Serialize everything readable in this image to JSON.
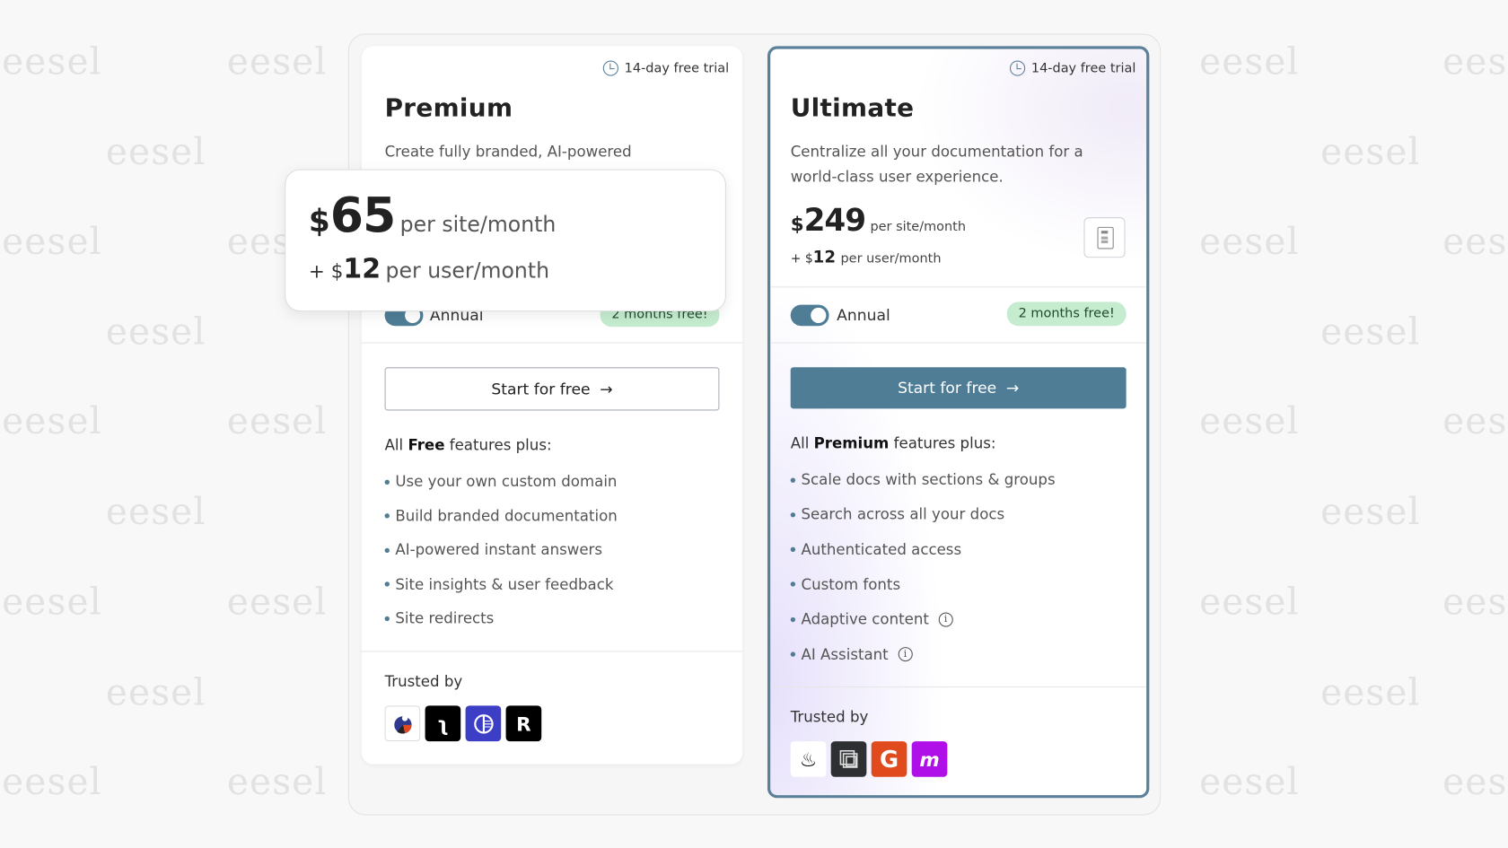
{
  "watermark": "eesel",
  "premium": {
    "trial": "14-day free trial",
    "title": "Premium",
    "description": "Create fully branded, AI-powered",
    "toggle_label": "Annual",
    "toggle_on": true,
    "badge": "2 months free!",
    "cta": "Start for free",
    "features_prefix": "All",
    "features_tier": "Free",
    "features_suffix": "features plus:",
    "features": [
      "Use your own custom domain",
      "Build branded documentation",
      "AI-powered instant answers",
      "Site insights & user feedback",
      "Site redirects"
    ],
    "trusted_by": "Trusted by"
  },
  "popup": {
    "currency": "$",
    "site_price": "65",
    "site_unit": "per site/month",
    "plus": "+ $",
    "user_price": "12",
    "user_unit": "per user/month"
  },
  "ultimate": {
    "trial": "14-day free trial",
    "title": "Ultimate",
    "description": "Centralize all your documentation for a world-class user experience.",
    "currency": "$",
    "site_price": "249",
    "site_unit": "per site/month",
    "plus": "+ $",
    "user_price": "12",
    "user_unit": "per user/month",
    "toggle_label": "Annual",
    "toggle_on": true,
    "badge": "2 months free!",
    "cta": "Start for free",
    "features_prefix": "All",
    "features_tier": "Premium",
    "features_suffix": "features plus:",
    "features": [
      "Scale docs with sections & groups",
      "Search across all your docs",
      "Authenticated access",
      "Custom fonts",
      "Adaptive content",
      "AI Assistant"
    ],
    "trusted_by": "Trusted by"
  },
  "colors": {
    "accent": "#4f7d96",
    "badge_bg": "#c6ecd0",
    "border_highlight": "#5a8199"
  }
}
